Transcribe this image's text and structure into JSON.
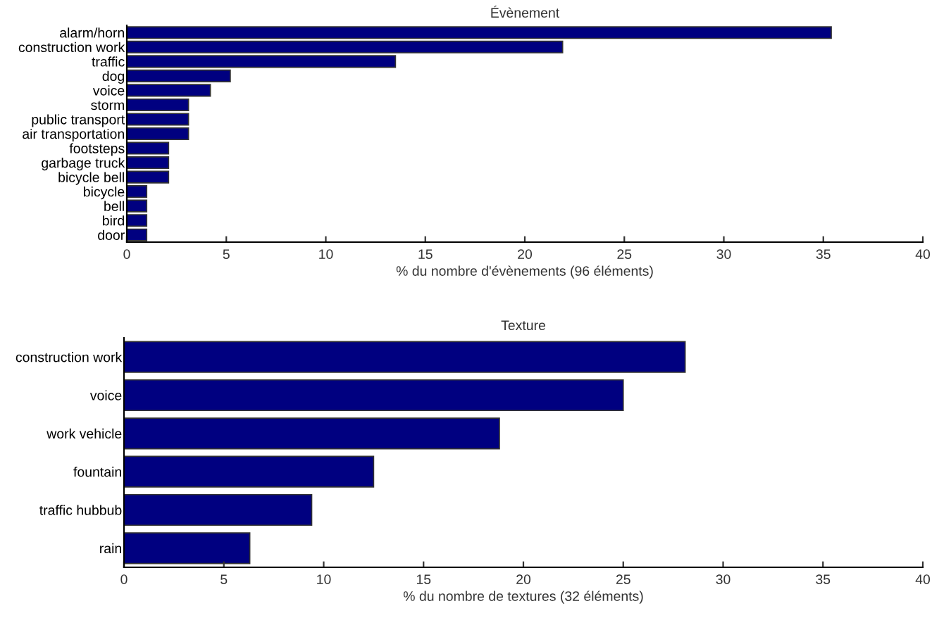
{
  "chart_data": [
    {
      "type": "bar",
      "orientation": "horizontal",
      "title": "Évènement",
      "xlabel": "% du nombre d'évènements (96 éléments)",
      "categories": [
        "alarm/horn",
        "construction work",
        "traffic",
        "dog",
        "voice",
        "storm",
        "public transport",
        "air transportation",
        "footsteps",
        "garbage truck",
        "bicycle bell",
        "bicycle",
        "bell",
        "bird",
        "door"
      ],
      "values": [
        35.4,
        21.9,
        13.5,
        5.2,
        4.2,
        3.1,
        3.1,
        3.1,
        2.1,
        2.1,
        2.1,
        1.0,
        1.0,
        1.0,
        1.0
      ],
      "color": "#000080",
      "xlim": [
        0,
        40
      ],
      "xticks": [
        0,
        5,
        10,
        15,
        20,
        25,
        30,
        35,
        40
      ],
      "grid": false
    },
    {
      "type": "bar",
      "orientation": "horizontal",
      "title": "Texture",
      "xlabel": "% du nombre de textures (32 éléments)",
      "categories": [
        "construction work",
        "voice",
        "work vehicle",
        "fountain",
        "traffic hubbub",
        "rain"
      ],
      "values": [
        28.1,
        25.0,
        18.8,
        12.5,
        9.4,
        6.3
      ],
      "color": "#000080",
      "xlim": [
        0,
        40
      ],
      "xticks": [
        0,
        5,
        10,
        15,
        20,
        25,
        30,
        35,
        40
      ],
      "grid": false
    }
  ]
}
